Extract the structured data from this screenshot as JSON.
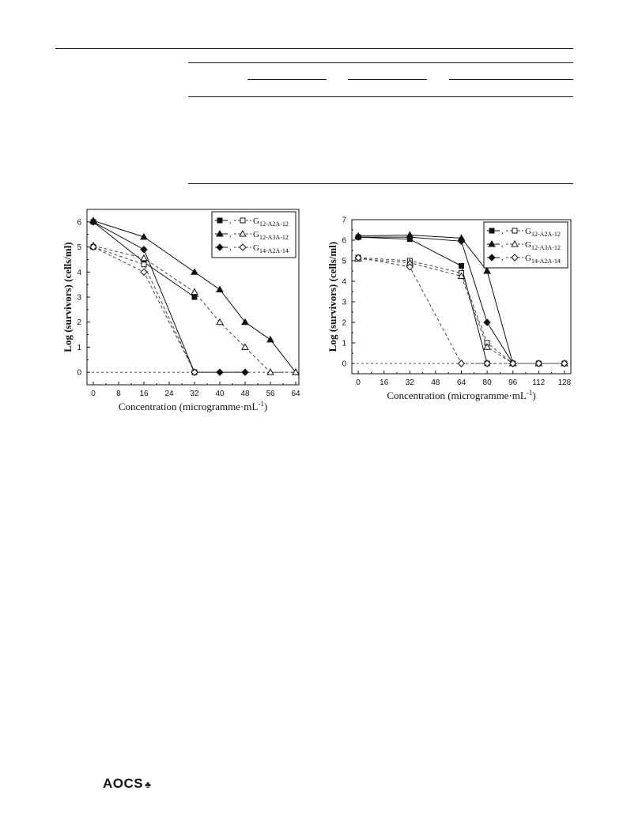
{
  "page": {
    "logo_text": "AOCS"
  },
  "chart_data": [
    {
      "type": "line",
      "xlabel": "Concentration  (microgramme·mL",
      "xlabel_sup": "-1",
      "xlabel_end": ")",
      "ylabel": "Log (survivors) (cells/ml)",
      "xlim": [
        -2,
        65
      ],
      "ylim": [
        -0.5,
        6.5
      ],
      "xticks": [
        0,
        8,
        16,
        24,
        32,
        40,
        48,
        56,
        64
      ],
      "yticks": [
        0,
        1,
        2,
        3,
        4,
        5,
        6
      ],
      "grid": false,
      "legend_position": "top-right",
      "legend": [
        {
          "base": "G",
          "sub": "12-A2A-12",
          "marker": "square"
        },
        {
          "base": "G",
          "sub": "12-A3A-12",
          "marker": "triangle"
        },
        {
          "base": "G",
          "sub": "14-A2A-14",
          "marker": "diamond"
        }
      ],
      "series": [
        {
          "marker": "square",
          "filled": true,
          "dashed": false,
          "x": [
            0,
            16,
            32
          ],
          "y": [
            6.0,
            4.4,
            3.0
          ]
        },
        {
          "marker": "square",
          "filled": false,
          "dashed": true,
          "x": [
            0,
            16,
            32
          ],
          "y": [
            5.0,
            4.3,
            0
          ]
        },
        {
          "marker": "triangle",
          "filled": true,
          "dashed": false,
          "x": [
            0,
            16,
            32,
            40,
            48,
            56,
            64
          ],
          "y": [
            6.05,
            5.4,
            4.0,
            3.3,
            2.0,
            1.3,
            0
          ]
        },
        {
          "marker": "triangle",
          "filled": false,
          "dashed": true,
          "x": [
            0,
            16,
            32,
            40,
            48,
            56,
            64
          ],
          "y": [
            5.05,
            4.55,
            3.2,
            2.0,
            1.0,
            0,
            0
          ]
        },
        {
          "marker": "diamond",
          "filled": true,
          "dashed": false,
          "x": [
            0,
            16,
            32,
            40,
            48
          ],
          "y": [
            6.0,
            4.9,
            0,
            0,
            0
          ]
        },
        {
          "marker": "diamond",
          "filled": false,
          "dashed": true,
          "x": [
            0,
            16,
            32
          ],
          "y": [
            5.0,
            4.0,
            0
          ]
        }
      ]
    },
    {
      "type": "line",
      "xlabel": "Concentration  (microgramme·mL",
      "xlabel_sup": "-1",
      "xlabel_end": ")",
      "ylabel": "Log (survivors) (cells/ml)",
      "xlim": [
        -4,
        132
      ],
      "ylim": [
        -0.5,
        7.0
      ],
      "xticks": [
        0,
        16,
        32,
        48,
        64,
        80,
        96,
        112,
        128
      ],
      "yticks": [
        0,
        1,
        2,
        3,
        4,
        5,
        6,
        7
      ],
      "grid": false,
      "legend_position": "top-right",
      "legend": [
        {
          "base": "G",
          "sub": "12-A2A-12",
          "marker": "square"
        },
        {
          "base": "G",
          "sub": "12-A3A-12",
          "marker": "triangle"
        },
        {
          "base": "G",
          "sub": "14-A2A-14",
          "marker": "diamond"
        }
      ],
      "series": [
        {
          "marker": "square",
          "filled": true,
          "dashed": false,
          "x": [
            0,
            32,
            64,
            80
          ],
          "y": [
            6.15,
            6.05,
            4.75,
            0
          ]
        },
        {
          "marker": "square",
          "filled": false,
          "dashed": true,
          "x": [
            0,
            32,
            64,
            80,
            96,
            112,
            128
          ],
          "y": [
            5.15,
            5.0,
            4.4,
            1.0,
            0,
            0,
            0
          ]
        },
        {
          "marker": "triangle",
          "filled": true,
          "dashed": false,
          "x": [
            0,
            32,
            64,
            80,
            96
          ],
          "y": [
            6.2,
            6.25,
            6.1,
            4.5,
            0
          ]
        },
        {
          "marker": "triangle",
          "filled": false,
          "dashed": true,
          "x": [
            0,
            32,
            64,
            80,
            96,
            112,
            128
          ],
          "y": [
            5.1,
            4.9,
            4.25,
            0.8,
            0,
            0,
            0
          ]
        },
        {
          "marker": "diamond",
          "filled": true,
          "dashed": false,
          "x": [
            0,
            32,
            64,
            80,
            96
          ],
          "y": [
            6.15,
            6.15,
            5.95,
            2.0,
            0
          ]
        },
        {
          "marker": "diamond",
          "filled": false,
          "dashed": true,
          "x": [
            0,
            32,
            64,
            80,
            96,
            112,
            128
          ],
          "y": [
            5.15,
            4.7,
            0,
            0,
            0,
            0,
            0
          ]
        }
      ]
    }
  ]
}
